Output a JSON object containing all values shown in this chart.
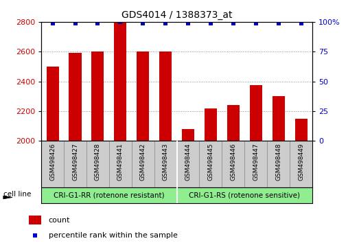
{
  "title": "GDS4014 / 1388373_at",
  "samples": [
    "GSM498426",
    "GSM498427",
    "GSM498428",
    "GSM498441",
    "GSM498442",
    "GSM498443",
    "GSM498444",
    "GSM498445",
    "GSM498446",
    "GSM498447",
    "GSM498448",
    "GSM498449"
  ],
  "counts": [
    2500,
    2590,
    2600,
    2800,
    2600,
    2600,
    2080,
    2220,
    2240,
    2375,
    2300,
    2150
  ],
  "percentile_ranks": [
    99,
    99,
    99,
    100,
    99,
    99,
    99,
    99,
    99,
    99,
    99,
    99
  ],
  "bar_color": "#cc0000",
  "dot_color": "#0000cc",
  "ylim_left": [
    2000,
    2800
  ],
  "ylim_right": [
    0,
    100
  ],
  "yticks_left": [
    2000,
    2200,
    2400,
    2600,
    2800
  ],
  "yticks_right": [
    0,
    25,
    50,
    75,
    100
  ],
  "group1_label": "CRI-G1-RR (rotenone resistant)",
  "group2_label": "CRI-G1-RS (rotenone sensitive)",
  "group1_count": 6,
  "group2_count": 6,
  "cell_line_label": "cell line",
  "legend_count_label": "count",
  "legend_percentile_label": "percentile rank within the sample",
  "group_bg_color": "#90ee90",
  "tick_area_bg": "#cccccc",
  "grid_color": "#888888",
  "bar_width": 0.55
}
